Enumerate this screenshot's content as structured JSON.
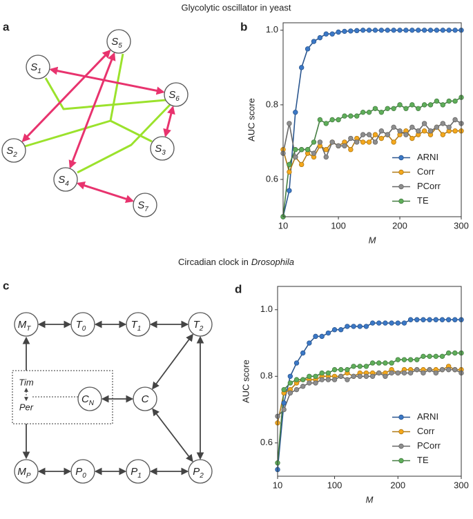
{
  "section_titles": [
    {
      "text": "Glycolytic oscillator in yeast"
    },
    {
      "text": "Circadian clock in",
      "emphasis": "Drosophila"
    }
  ],
  "networks": [
    {
      "panel": "a",
      "nodes": [
        {
          "label": "S",
          "subscript": "1"
        },
        {
          "label": "S",
          "subscript": "2"
        },
        {
          "label": "S",
          "subscript": "3"
        },
        {
          "label": "S",
          "subscript": "4"
        },
        {
          "label": "S",
          "subscript": "5"
        },
        {
          "label": "S",
          "subscript": "6"
        },
        {
          "label": "S",
          "subscript": "7"
        }
      ]
    },
    {
      "panel": "c",
      "nodes": [
        {
          "label": "M",
          "subscript": "T"
        },
        {
          "label": "T",
          "subscript": "0"
        },
        {
          "label": "T",
          "subscript": "1"
        },
        {
          "label": "T",
          "subscript": "2"
        },
        {
          "label": "C",
          "subscript": "N"
        },
        {
          "label": "C"
        },
        {
          "label": "M",
          "subscript": "P"
        },
        {
          "label": "P",
          "subscript": "0"
        },
        {
          "label": "P",
          "subscript": "1"
        },
        {
          "label": "P",
          "subscript": "2"
        }
      ],
      "box_labels": [
        "Tim",
        "Per"
      ]
    }
  ],
  "chart_data": [
    {
      "type": "line",
      "panel": "b",
      "x_label": "M",
      "y_label": "AUC score",
      "x": [
        10,
        20,
        30,
        40,
        50,
        60,
        70,
        80,
        90,
        100,
        110,
        120,
        130,
        140,
        150,
        160,
        170,
        180,
        190,
        200,
        210,
        220,
        230,
        240,
        250,
        260,
        270,
        280,
        290,
        300
      ],
      "xlim": [
        10,
        300
      ],
      "xticks": [
        10,
        100,
        200,
        300
      ],
      "ylim": [
        0.5,
        1.02
      ],
      "yticks": [
        0.6,
        0.8,
        {
          "value": 1,
          "label": "1.0"
        }
      ],
      "legend": "lower right",
      "series": [
        {
          "name": "ARNI",
          "color": "#3b78c6",
          "values": [
            0.5,
            0.57,
            0.78,
            0.9,
            0.95,
            0.97,
            0.98,
            0.99,
            0.99,
            0.995,
            0.997,
            0.998,
            0.999,
            1,
            1,
            1,
            1,
            1,
            1,
            1,
            1,
            1,
            1,
            1,
            1,
            1,
            1,
            1,
            1,
            1
          ]
        },
        {
          "name": "Corr",
          "color": "#f5a81c",
          "values": [
            0.68,
            0.62,
            0.66,
            0.64,
            0.67,
            0.66,
            0.69,
            0.68,
            0.7,
            0.69,
            0.7,
            0.68,
            0.71,
            0.7,
            0.7,
            0.72,
            0.71,
            0.72,
            0.7,
            0.72,
            0.73,
            0.71,
            0.72,
            0.73,
            0.72,
            0.74,
            0.72,
            0.73,
            0.73,
            0.73
          ]
        },
        {
          "name": "PCorr",
          "color": "#8e8e8e",
          "values": [
            0.67,
            0.75,
            0.66,
            0.68,
            0.68,
            0.67,
            0.7,
            0.66,
            0.7,
            0.69,
            0.69,
            0.71,
            0.7,
            0.72,
            0.72,
            0.7,
            0.73,
            0.72,
            0.74,
            0.73,
            0.72,
            0.74,
            0.73,
            0.75,
            0.73,
            0.74,
            0.75,
            0.74,
            0.76,
            0.75
          ]
        },
        {
          "name": "TE",
          "color": "#5fae5a",
          "values": [
            0.5,
            0.64,
            0.68,
            0.68,
            0.68,
            0.7,
            0.76,
            0.75,
            0.76,
            0.76,
            0.77,
            0.77,
            0.77,
            0.78,
            0.78,
            0.79,
            0.78,
            0.79,
            0.79,
            0.8,
            0.79,
            0.8,
            0.79,
            0.8,
            0.8,
            0.81,
            0.8,
            0.81,
            0.81,
            0.82
          ]
        }
      ]
    },
    {
      "type": "line",
      "panel": "d",
      "x_label": "M",
      "y_label": "AUC score",
      "x": [
        10,
        20,
        30,
        40,
        50,
        60,
        70,
        80,
        90,
        100,
        110,
        120,
        130,
        140,
        150,
        160,
        170,
        180,
        190,
        200,
        210,
        220,
        230,
        240,
        250,
        260,
        270,
        280,
        290,
        300
      ],
      "xlim": [
        10,
        300
      ],
      "xticks": [
        10,
        100,
        200,
        300
      ],
      "ylim": [
        0.5,
        1.07
      ],
      "yticks": [
        0.6,
        0.8,
        {
          "value": 1,
          "label": "1.0"
        }
      ],
      "legend": "lower right",
      "series": [
        {
          "name": "ARNI",
          "color": "#3b78c6",
          "values": [
            0.52,
            0.72,
            0.8,
            0.84,
            0.87,
            0.9,
            0.92,
            0.92,
            0.93,
            0.94,
            0.94,
            0.95,
            0.95,
            0.95,
            0.95,
            0.96,
            0.96,
            0.96,
            0.96,
            0.96,
            0.96,
            0.97,
            0.97,
            0.97,
            0.97,
            0.97,
            0.97,
            0.97,
            0.97,
            0.97
          ]
        },
        {
          "name": "Corr",
          "color": "#f5a81c",
          "values": [
            0.66,
            0.75,
            0.76,
            0.78,
            0.79,
            0.79,
            0.79,
            0.8,
            0.8,
            0.8,
            0.8,
            0.81,
            0.8,
            0.81,
            0.81,
            0.81,
            0.81,
            0.81,
            0.82,
            0.81,
            0.82,
            0.82,
            0.82,
            0.82,
            0.82,
            0.82,
            0.82,
            0.83,
            0.82,
            0.82
          ]
        },
        {
          "name": "PCorr",
          "color": "#8e8e8e",
          "values": [
            0.68,
            0.7,
            0.75,
            0.76,
            0.77,
            0.78,
            0.78,
            0.79,
            0.79,
            0.79,
            0.8,
            0.79,
            0.8,
            0.8,
            0.8,
            0.8,
            0.81,
            0.8,
            0.81,
            0.81,
            0.81,
            0.81,
            0.82,
            0.81,
            0.82,
            0.81,
            0.82,
            0.82,
            0.82,
            0.81
          ]
        },
        {
          "name": "TE",
          "color": "#5fae5a",
          "values": [
            0.54,
            0.76,
            0.78,
            0.79,
            0.79,
            0.8,
            0.8,
            0.81,
            0.81,
            0.82,
            0.82,
            0.82,
            0.83,
            0.83,
            0.83,
            0.84,
            0.84,
            0.84,
            0.84,
            0.85,
            0.85,
            0.85,
            0.85,
            0.86,
            0.86,
            0.86,
            0.86,
            0.87,
            0.87,
            0.87
          ]
        }
      ]
    }
  ]
}
